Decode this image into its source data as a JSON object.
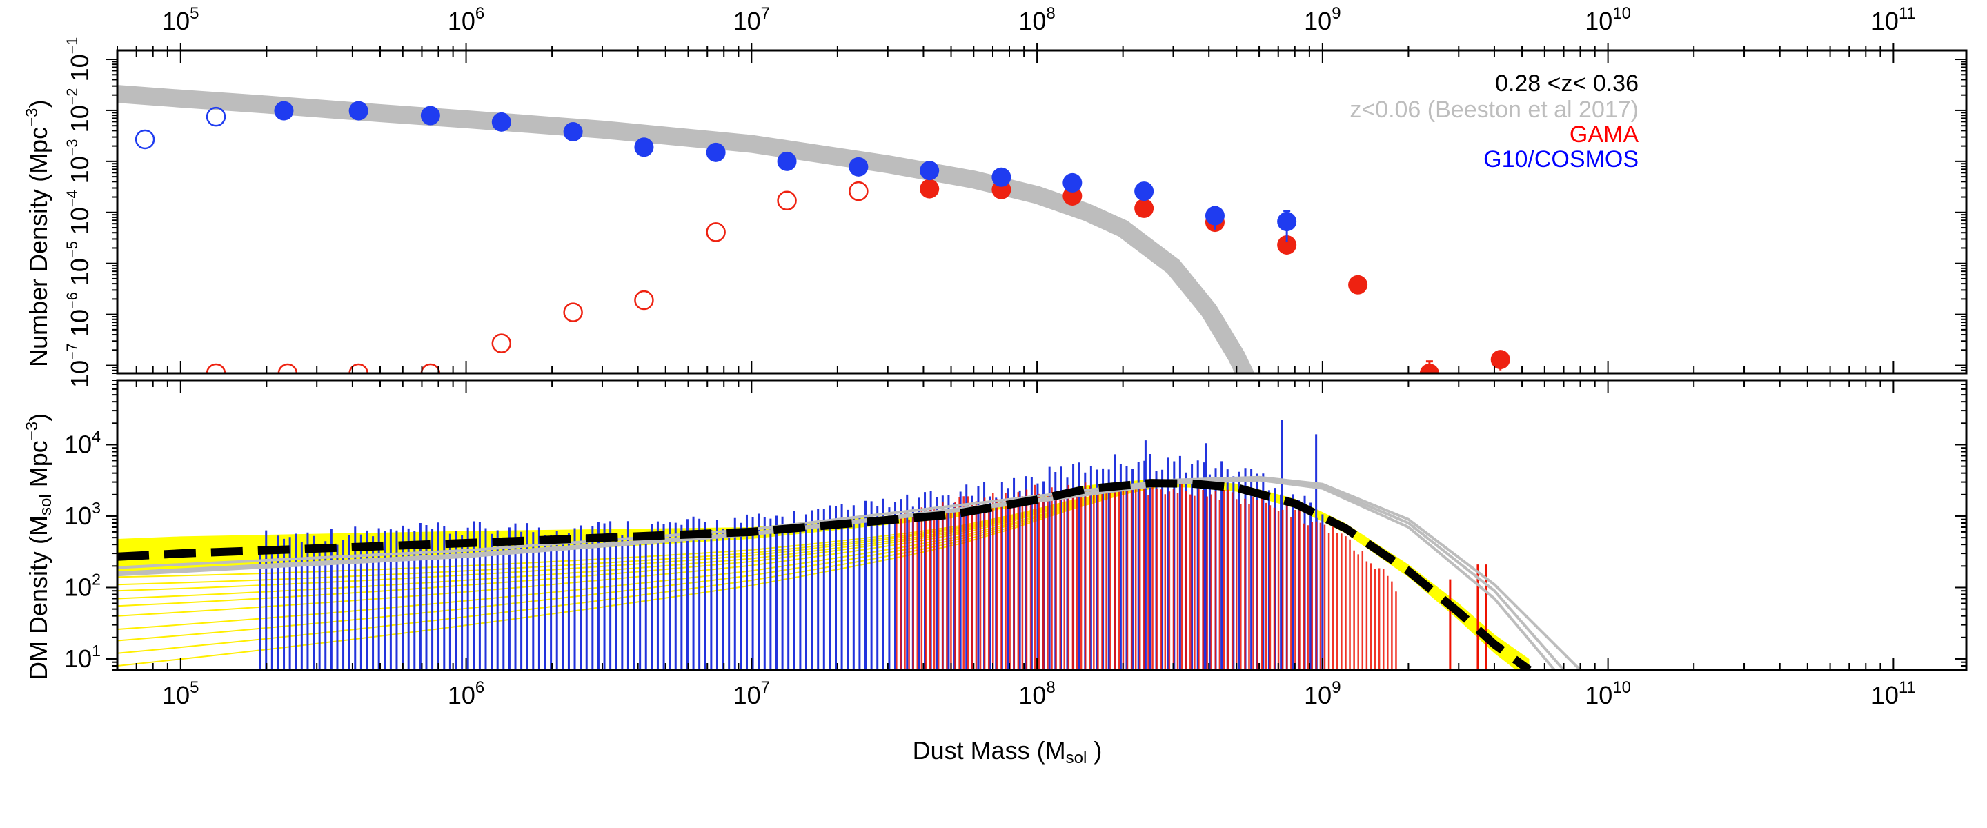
{
  "chart_data": [
    {
      "panel": "top",
      "type": "scatter",
      "ylabel": "Number Density (Mpc^-3)",
      "ylabel_main": "Number Density (Mpc",
      "ylabel_sup": "−3",
      "ylabel_close": ")",
      "x_scale": "log",
      "y_scale": "log",
      "xlim": [
        60000,
        180000000000
      ],
      "ylim": [
        7e-08,
        0.15
      ],
      "top_axis_labels": [
        {
          "value": 100000,
          "base": "10",
          "exp": "5"
        },
        {
          "value": 1000000,
          "base": "10",
          "exp": "6"
        },
        {
          "value": 10000000,
          "base": "10",
          "exp": "7"
        },
        {
          "value": 100000000,
          "base": "10",
          "exp": "8"
        },
        {
          "value": 1000000000,
          "base": "10",
          "exp": "9"
        },
        {
          "value": 10000000000,
          "base": "10",
          "exp": "10"
        },
        {
          "value": 100000000000,
          "base": "10",
          "exp": "11"
        }
      ],
      "y_tick_labels": [
        {
          "value": 0.1,
          "base": "10",
          "exp": "−1"
        },
        {
          "value": 0.01,
          "base": "10",
          "exp": "−2"
        },
        {
          "value": 0.001,
          "base": "10",
          "exp": "−3"
        },
        {
          "value": 0.0001,
          "base": "10",
          "exp": "−4"
        },
        {
          "value": 1e-05,
          "base": "10",
          "exp": "−5"
        },
        {
          "value": 1e-06,
          "base": "10",
          "exp": "−6"
        },
        {
          "value": 1e-07,
          "base": "10",
          "exp": "−7"
        }
      ],
      "legend": {
        "placement": "top-right",
        "entries": [
          {
            "text": "0.28 <z< 0.36",
            "color": "#000000"
          },
          {
            "text": "z<0.06 (Beeston et al 2017)",
            "color": "#bdbdbd"
          },
          {
            "text": "GAMA",
            "color": "#ff0000"
          },
          {
            "text": "G10/COSMOS",
            "color": "#0000ff"
          }
        ]
      },
      "colors": {
        "cosmos": "#1f3cf0",
        "gama": "#ee2211",
        "beeston": "#bdbdbd"
      },
      "beeston_curve": {
        "x": [
          60000,
          100000,
          200000,
          500000,
          1000000,
          3000000,
          10000000,
          30000000,
          60000000,
          100000000,
          150000000,
          200000000,
          300000000,
          400000000,
          500000000,
          560000000
        ],
        "y": [
          0.021,
          0.017,
          0.013,
          0.0088,
          0.0067,
          0.0042,
          0.0022,
          0.00088,
          0.00044,
          0.00022,
          0.0001,
          4.8e-05,
          8.7e-06,
          1.2e-06,
          1.5e-07,
          4e-08
        ]
      },
      "series": [
        {
          "name": "G10/COSMOS",
          "filled": {
            "x": [
              230000,
              420000,
              750000,
              1330000,
              2370000,
              4200000,
              7500000,
              13300000,
              23700000,
              42000000,
              75000000,
              133000000,
              237000000,
              420000000,
              750000000
            ],
            "y": [
              0.0098,
              0.0098,
              0.0079,
              0.0059,
              0.0038,
              0.0019,
              0.0015,
              0.001,
              0.00078,
              0.00066,
              0.00049,
              0.00038,
              0.00026,
              8.6e-05,
              6.6e-05
            ],
            "yerr": [
              0.0025,
              0.0022,
              0.0018,
              0.0014,
              0.001,
              0.0006,
              0.0005,
              0.0003,
              0.0002,
              0.00015,
              0.00012,
              0.0001,
              7e-05,
              4e-05,
              4e-05
            ]
          },
          "open": {
            "x": [
              75000,
              133000
            ],
            "y": [
              0.0027,
              0.0075
            ]
          }
        },
        {
          "name": "GAMA",
          "filled": {
            "x": [
              42000000,
              75000000,
              133000000,
              237000000,
              420000000,
              750000000,
              1330000000,
              2370000000,
              4200000000
            ],
            "y": [
              0.00029,
              0.00028,
              0.00021,
              0.00012,
              6.4e-05,
              2.3e-05,
              3.8e-06,
              7e-08,
              1.3e-07
            ],
            "yerr": [
              6e-05,
              5e-05,
              4e-05,
              3e-05,
              2e-05,
              8e-06,
              1e-06,
              5e-08,
              5e-08
            ]
          },
          "open": {
            "x": [
              133000,
              237000,
              420000,
              750000,
              1330000,
              2370000,
              4200000,
              7500000,
              13300000,
              23700000
            ],
            "y": [
              7e-08,
              7e-08,
              7e-08,
              7e-08,
              2.7e-07,
              1.1e-06,
              1.9e-06,
              4.1e-05,
              0.00017,
              0.00026
            ]
          }
        }
      ]
    },
    {
      "panel": "bottom",
      "type": "bar",
      "xlabel": "Dust Mass (M_sol)",
      "xlabel_main": "Dust Mass (M",
      "xlabel_sub": "sol",
      "xlabel_close": " )",
      "ylabel": "DM Density (M_sol Mpc^-3)",
      "ylabel_main": "DM Density (M",
      "ylabel_sub": "sol",
      "ylabel_mid": " Mpc",
      "ylabel_sup": "−3",
      "ylabel_close": ")",
      "x_scale": "log",
      "y_scale": "log",
      "xlim": [
        60000,
        180000000000
      ],
      "ylim": [
        7,
        80000
      ],
      "x_tick_labels": [
        {
          "value": 100000,
          "base": "10",
          "exp": "5"
        },
        {
          "value": 1000000,
          "base": "10",
          "exp": "6"
        },
        {
          "value": 10000000,
          "base": "10",
          "exp": "7"
        },
        {
          "value": 100000000,
          "base": "10",
          "exp": "8"
        },
        {
          "value": 1000000000,
          "base": "10",
          "exp": "9"
        },
        {
          "value": 10000000000,
          "base": "10",
          "exp": "10"
        },
        {
          "value": 100000000000,
          "base": "10",
          "exp": "11"
        }
      ],
      "y_tick_labels": [
        {
          "value": 10,
          "base": "10",
          "exp": "1"
        },
        {
          "value": 100,
          "base": "10",
          "exp": "2"
        },
        {
          "value": 1000,
          "base": "10",
          "exp": "3"
        },
        {
          "value": 10000,
          "base": "10",
          "exp": "4"
        }
      ],
      "colors": {
        "cosmos": "#2233dd",
        "gama": "#ee1100",
        "fit": "#000000",
        "fit_band": "#ffff00",
        "yellow_line": "#ffee00",
        "beeston": "#bdbdbd"
      },
      "cosmos_bars": {
        "x_range": [
          190000,
          1000000000
        ],
        "n": 180,
        "envelope_x": [
          190000,
          1000000,
          5000000,
          10000000,
          20000000,
          40000000,
          70000000,
          100000000,
          150000000,
          200000000,
          300000000,
          400000000,
          600000000,
          800000000,
          1000000000
        ],
        "envelope_y": [
          650,
          850,
          950,
          1100,
          1500,
          2200,
          3200,
          4500,
          6500,
          8000,
          7500,
          6500,
          5000,
          2500,
          1500
        ],
        "spikes": [
          {
            "x": 720000000,
            "y": 22000
          },
          {
            "x": 950000000,
            "y": 14000
          },
          {
            "x": 240000000,
            "y": 11500
          },
          {
            "x": 390000000,
            "y": 10500
          }
        ]
      },
      "gama_bars": {
        "x_range": [
          32000000,
          1800000000
        ],
        "n": 120,
        "envelope_x": [
          32000000,
          60000000,
          100000000,
          200000000,
          400000000,
          700000000,
          1000000000,
          1300000000,
          1600000000,
          1800000000
        ],
        "envelope_y": [
          1400,
          2000,
          2800,
          3100,
          2700,
          1700,
          900,
          450,
          200,
          120
        ],
        "extra": [
          {
            "x": 2800000000,
            "y": 130
          },
          {
            "x": 3500000000,
            "y": 210
          },
          {
            "x": 3750000000,
            "y": 210
          }
        ]
      },
      "fit_line": {
        "x": [
          60000,
          100000,
          1000000,
          10000000,
          50000000,
          100000000,
          150000000,
          250000000,
          350000000,
          500000000,
          800000000,
          1200000000,
          2000000000,
          3000000000,
          4000000000,
          5300000000
        ],
        "y": [
          270,
          300,
          420,
          600,
          1050,
          1700,
          2400,
          2900,
          2850,
          2500,
          1500,
          680,
          170,
          45,
          16,
          7
        ]
      },
      "fit_band": {
        "x": [
          60000,
          100000,
          1000000,
          10000000,
          50000000,
          100000000,
          150000000,
          250000000,
          350000000,
          500000000,
          800000000,
          1200000000,
          2000000000,
          3000000000,
          4000000000,
          5300000000
        ],
        "upper": [
          480,
          520,
          620,
          700,
          1200,
          1900,
          2700,
          3300,
          3200,
          2850,
          1750,
          800,
          210,
          60,
          22,
          10
        ],
        "lower": [
          150,
          180,
          280,
          480,
          930,
          1550,
          2150,
          2600,
          2500,
          2200,
          1300,
          580,
          140,
          35,
          12,
          5
        ]
      },
      "beeston_curves": [
        {
          "x": [
            60000,
            1000000,
            10000000,
            100000000,
            300000000,
            600000000,
            1000000000,
            2000000000,
            4000000000,
            8000000000
          ],
          "y": [
            190,
            330,
            650,
            1900,
            3200,
            3500,
            2800,
            900,
            110,
            7
          ]
        },
        {
          "x": [
            60000,
            1000000,
            10000000,
            100000000,
            300000000,
            600000000,
            1000000000,
            2000000000,
            4000000000,
            7000000000
          ],
          "y": [
            160,
            290,
            580,
            1700,
            3000,
            3300,
            2600,
            800,
            90,
            7
          ]
        },
        {
          "x": [
            60000,
            1000000,
            10000000,
            100000000,
            300000000,
            600000000,
            1000000000,
            2000000000,
            4000000000,
            6500000000
          ],
          "y": [
            150,
            270,
            550,
            1600,
            2900,
            3200,
            2450,
            700,
            70,
            7
          ]
        }
      ],
      "yellow_lines_start_y": [
        8,
        12,
        18,
        26,
        40,
        55,
        70,
        90,
        110,
        140
      ],
      "yellow_lines_end_x": 300000000
    }
  ]
}
